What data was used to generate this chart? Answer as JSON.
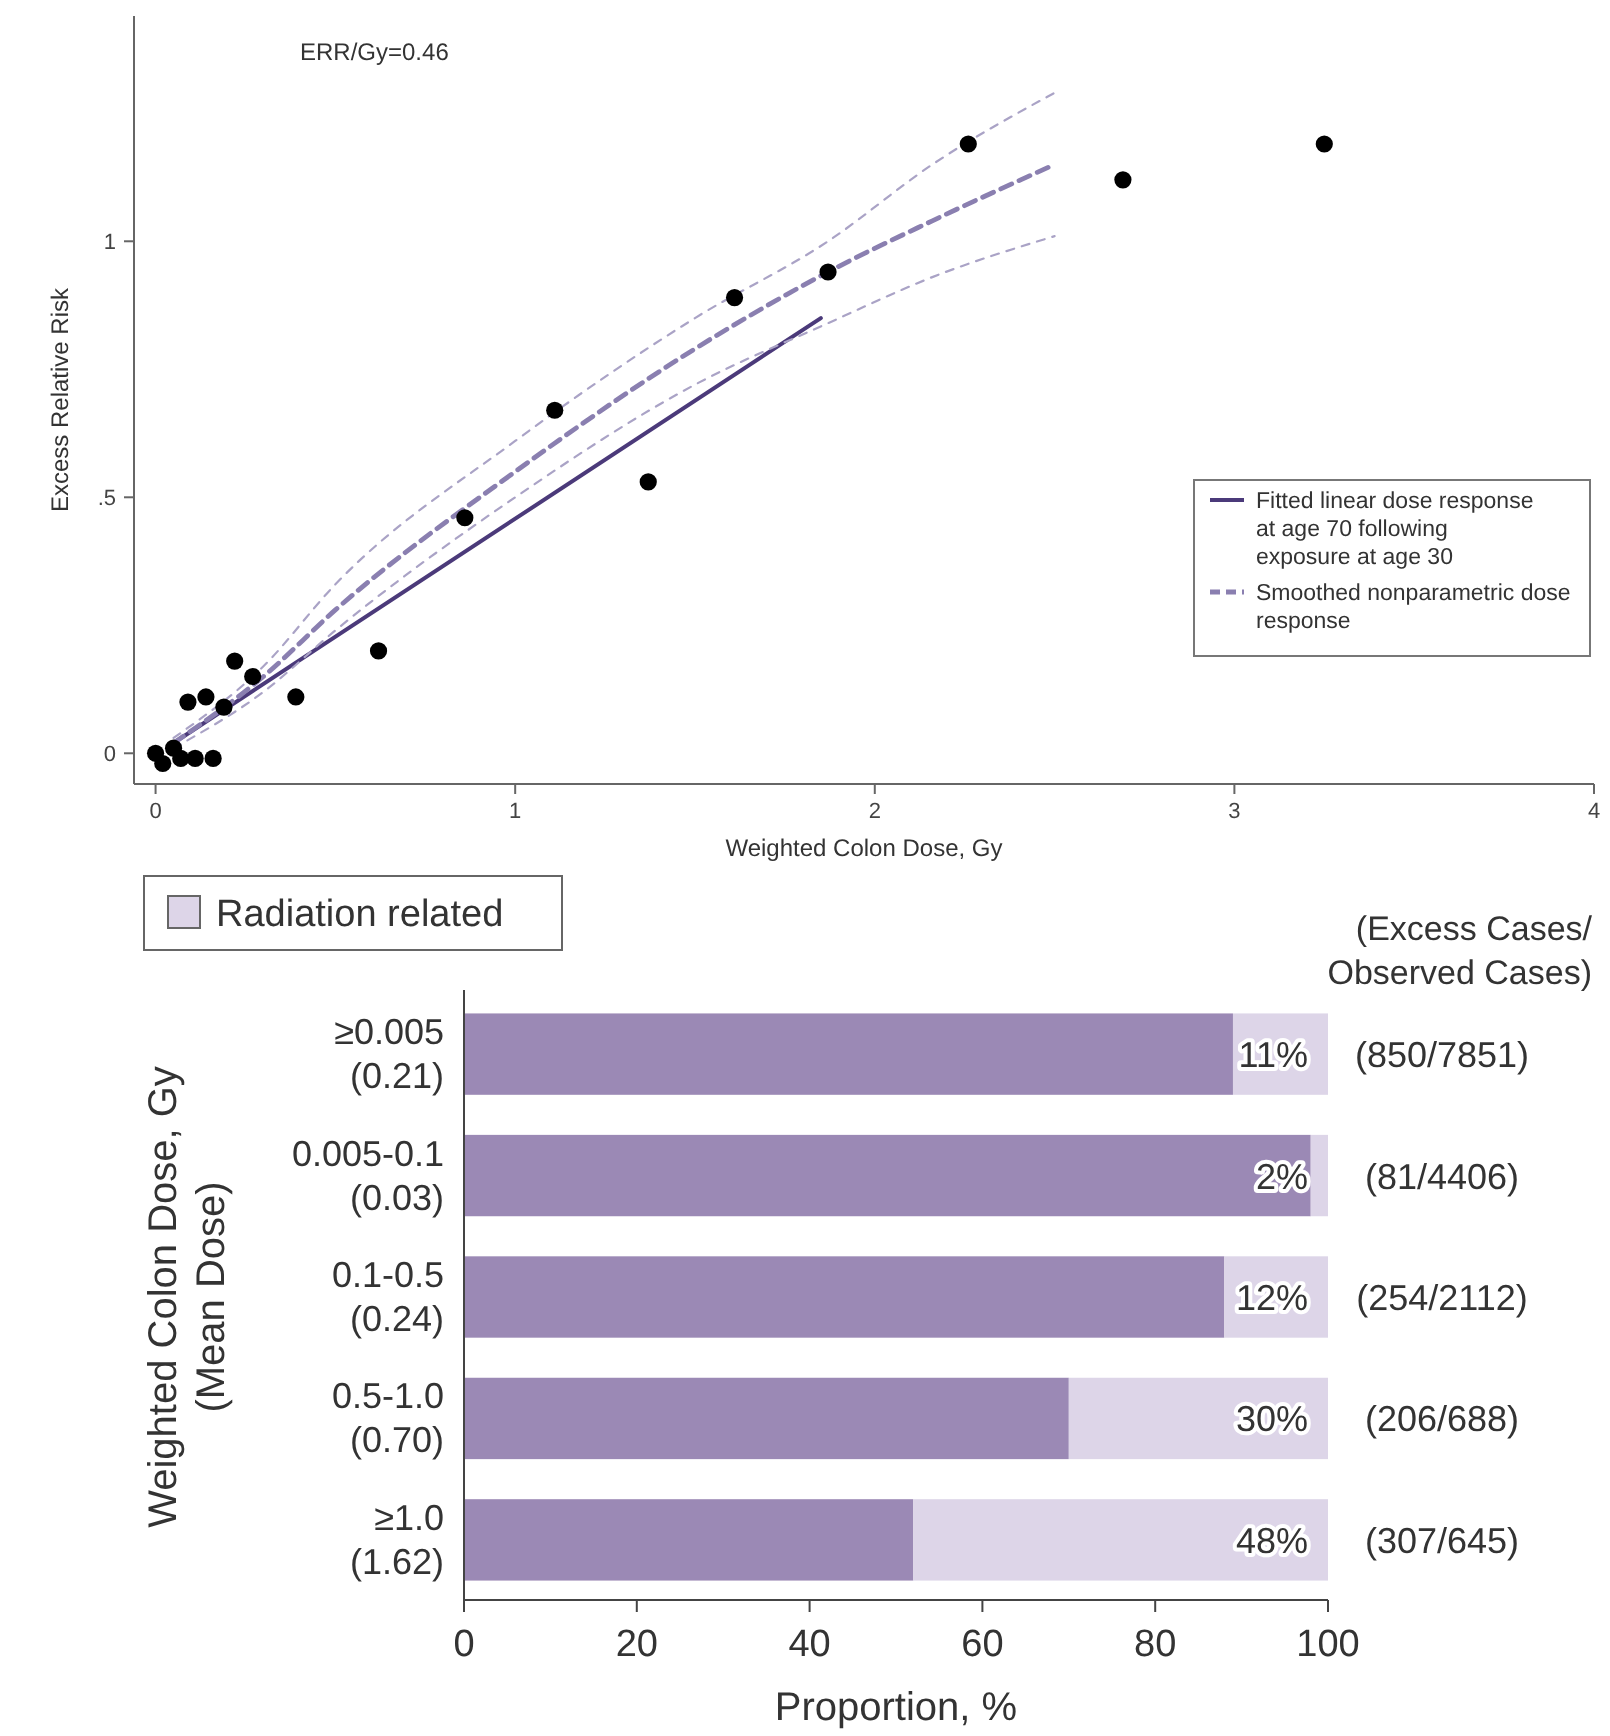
{
  "chart_data": [
    {
      "type": "scatter",
      "xlabel": "Weighted Colon Dose, Gy",
      "ylabel": "Excess Relative Risk",
      "annotations": [
        "ERR/Gy=0.46"
      ],
      "xlim": [
        -0.06,
        4
      ],
      "ylim": [
        -0.06,
        1.44
      ],
      "xticks": [
        0,
        1,
        2,
        3,
        4
      ],
      "yticks": [
        0,
        {
          "value": 0.5,
          "label": ".5"
        },
        1
      ],
      "legend": "right",
      "marker": "circle",
      "series": [
        {
          "type": "scatter",
          "color": "#000000",
          "x": [
            0,
            0.02,
            0.05,
            0.07,
            0.11,
            0.16,
            0.09,
            0.14,
            0.19,
            0.22,
            0.27,
            0.39,
            0.62,
            0.86,
            1.11,
            1.37,
            1.61,
            1.87,
            2.26,
            2.69,
            3.25
          ],
          "values": [
            0,
            -0.02,
            0.01,
            -0.01,
            -0.01,
            -0.01,
            0.1,
            0.11,
            0.09,
            0.18,
            0.15,
            0.11,
            0.2,
            0.46,
            0.67,
            0.53,
            0.89,
            0.94,
            1.19,
            1.12,
            1.19
          ]
        },
        {
          "type": "line",
          "name": "Fitted linear dose response at age 70 following exposure at age 30",
          "color": "#4b3a7a",
          "line_style": "solid",
          "marker": "none",
          "x": [
            0.05,
            1.85
          ],
          "values": [
            0.02,
            0.85
          ]
        },
        {
          "type": "line",
          "name": "Smoothed nonparametric dose response",
          "color": "#8a7fb0",
          "line_style": "dashed",
          "marker": "none",
          "x": [
            0.05,
            0.3,
            0.5,
            1.0,
            1.5,
            1.87,
            2.16,
            2.5
          ],
          "values": [
            0.02,
            0.15,
            0.28,
            0.55,
            0.79,
            0.94,
            1.04,
            1.15
          ]
        },
        {
          "type": "line",
          "color": "#aaa3c6",
          "line_style": "dotted",
          "marker": "none",
          "x": [
            0.05,
            0.3,
            0.5,
            1.0,
            1.5,
            1.87,
            2.16,
            2.5
          ],
          "values": [
            0.01,
            0.12,
            0.24,
            0.5,
            0.72,
            0.84,
            0.93,
            1.01
          ]
        },
        {
          "type": "line",
          "color": "#aaa3c6",
          "line_style": "dotted",
          "marker": "none",
          "x": [
            0.05,
            0.3,
            0.5,
            1.0,
            1.5,
            1.87,
            2.16,
            2.5
          ],
          "values": [
            0.03,
            0.17,
            0.33,
            0.61,
            0.85,
            1.0,
            1.15,
            1.29
          ]
        }
      ]
    },
    {
      "type": "bar",
      "orientation": "horizontal",
      "stacked": true,
      "xlabel": "Proportion, %",
      "ylabel": "Weighted Colon Dose, Gy\n(Mean Dose)",
      "categories": [
        "≥0.005\n(0.21)",
        "0.005-0.1\n(0.03)",
        "0.1-0.5\n(0.24)",
        "0.5-1.0\n(0.70)",
        "≥1.0\n(1.62)"
      ],
      "xlim": [
        0,
        100
      ],
      "xticks": [
        0,
        20,
        40,
        60,
        80,
        100
      ],
      "legend": "top left",
      "annotations": [
        "(Excess Cases/\nObserved Cases)",
        "(850/7851)",
        "(81/4406)",
        "(254/2112)",
        "(206/688)",
        "(307/645)"
      ],
      "series": [
        {
          "color": "#9b89b5",
          "values": [
            89,
            98,
            88,
            70,
            52
          ]
        },
        {
          "name": "Radiation related",
          "color": "#ddd5e8",
          "values": [
            11,
            2,
            12,
            30,
            48
          ],
          "value_labels": [
            "11%",
            "2%",
            "12%",
            "30%",
            "48%"
          ]
        }
      ]
    }
  ]
}
